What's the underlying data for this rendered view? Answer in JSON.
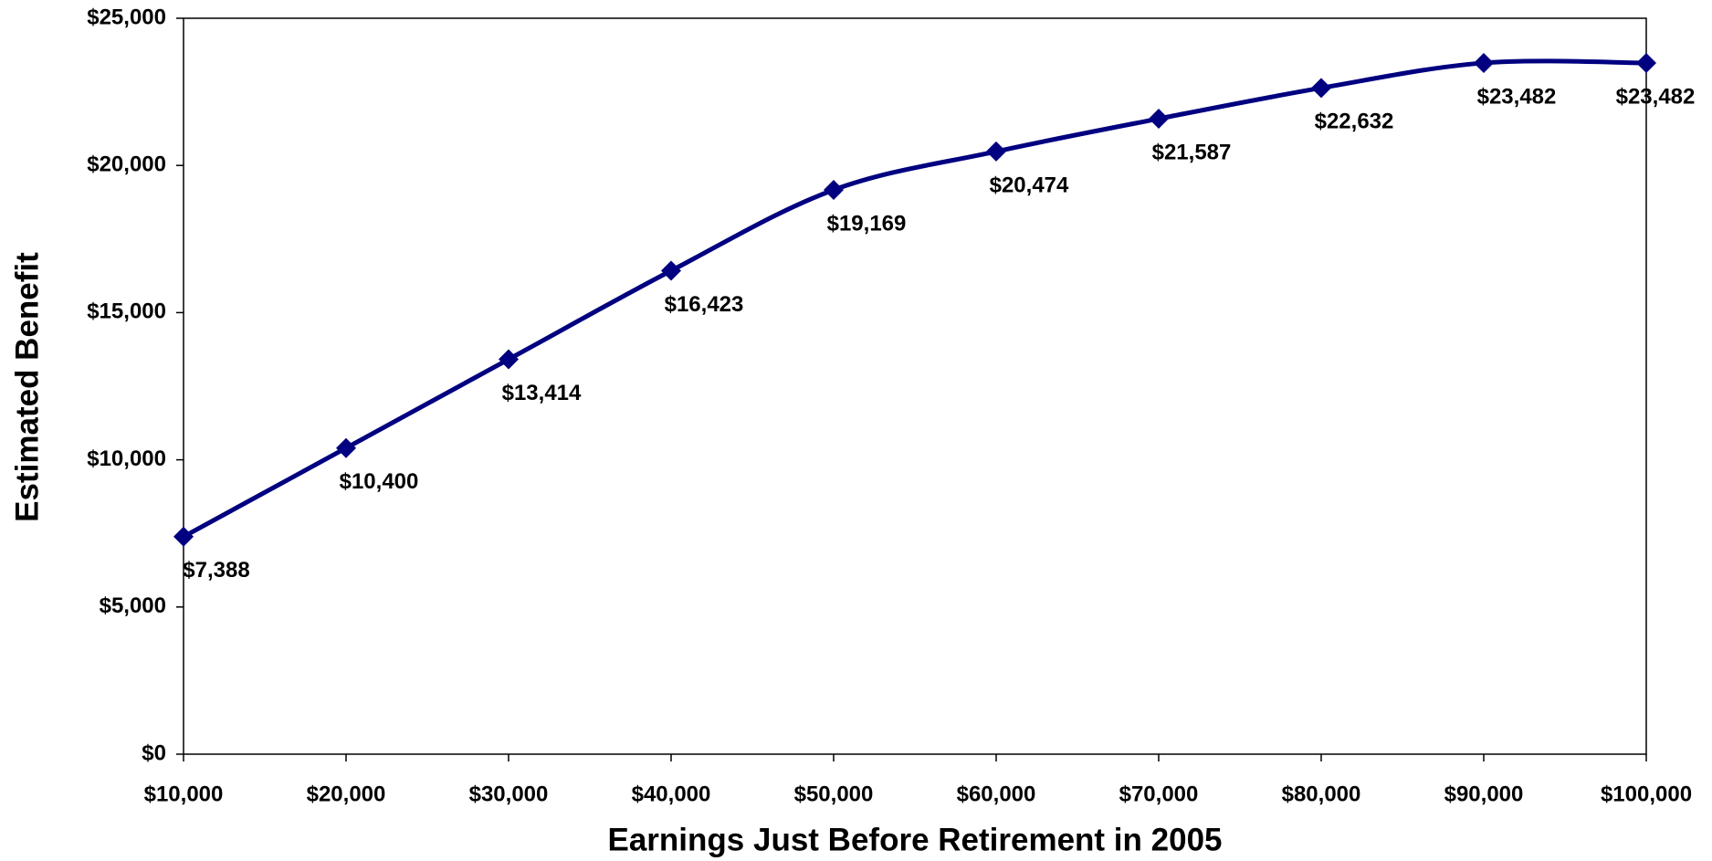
{
  "chart_data": {
    "type": "line",
    "xlabel": "Earnings Just Before Retirement in 2005",
    "ylabel": "Estimated Benefit",
    "x": [
      10000,
      20000,
      30000,
      40000,
      50000,
      60000,
      70000,
      80000,
      90000,
      100000
    ],
    "series": [
      {
        "name": "Estimated Benefit",
        "color": "#000080",
        "values": [
          7388,
          10400,
          13414,
          16423,
          19169,
          20474,
          21587,
          22632,
          23482,
          23482
        ],
        "value_labels": [
          "$7,388",
          "$10,400",
          "$13,414",
          "$16,423",
          "$19,169",
          "$20,474",
          "$21,587",
          "$22,632",
          "$23,482",
          "$23,482"
        ]
      }
    ],
    "xlim": [
      10000,
      100000
    ],
    "xticks": [
      {
        "value": 10000,
        "label": "$10,000"
      },
      {
        "value": 20000,
        "label": "$20,000"
      },
      {
        "value": 30000,
        "label": "$30,000"
      },
      {
        "value": 40000,
        "label": "$40,000"
      },
      {
        "value": 50000,
        "label": "$50,000"
      },
      {
        "value": 60000,
        "label": "$60,000"
      },
      {
        "value": 70000,
        "label": "$70,000"
      },
      {
        "value": 80000,
        "label": "$80,000"
      },
      {
        "value": 90000,
        "label": "$90,000"
      },
      {
        "value": 100000,
        "label": "$100,000"
      }
    ],
    "ylim": [
      0,
      25000
    ],
    "yticks": [
      {
        "value": 0,
        "label": "$0"
      },
      {
        "value": 5000,
        "label": "$5,000"
      },
      {
        "value": 10000,
        "label": "$10,000"
      },
      {
        "value": 15000,
        "label": "$15,000"
      },
      {
        "value": 20000,
        "label": "$20,000"
      },
      {
        "value": 25000,
        "label": "$25,000"
      }
    ],
    "grid": false
  }
}
